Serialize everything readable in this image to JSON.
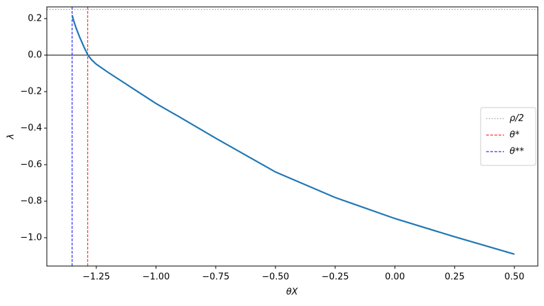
{
  "chart_data": {
    "type": "line",
    "xlabel": "θX",
    "ylabel": "λ",
    "x": [
      -1.351,
      -1.345,
      -1.335,
      -1.32,
      -1.3,
      -1.285,
      -1.27,
      -1.25,
      -1.2,
      -1.1,
      -1.0,
      -0.9,
      -0.75,
      -0.5,
      -0.25,
      0.0,
      0.25,
      0.5
    ],
    "series": [
      {
        "color": "#1f77b4",
        "values": [
          0.219,
          0.19,
          0.15,
          0.1,
          0.04,
          0.0,
          -0.025,
          -0.05,
          -0.095,
          -0.18,
          -0.265,
          -0.34,
          -0.455,
          -0.64,
          -0.78,
          -0.895,
          -0.995,
          -1.09
        ]
      }
    ],
    "reference_lines": [
      {
        "orientation": "h",
        "value": 0,
        "color": "#000000",
        "dash": "solid"
      },
      {
        "name": "ρ/2",
        "orientation": "h",
        "value": 0.25,
        "color": "#808080",
        "dash": "dotted"
      },
      {
        "name": "θ*",
        "orientation": "v",
        "value": -1.286,
        "color": "#ff0000",
        "dash": "dashed"
      },
      {
        "name": "θ**",
        "orientation": "v",
        "value": -1.351,
        "color": "#0000ff",
        "dash": "dashed"
      }
    ],
    "xlim": [
      -1.457,
      0.598
    ],
    "ylim": [
      -1.155,
      0.264
    ],
    "xticks": [
      {
        "value": -1.25,
        "label": "−1.25"
      },
      {
        "value": -1.0,
        "label": "−1.00"
      },
      {
        "value": -0.75,
        "label": "−0.75"
      },
      {
        "value": -0.5,
        "label": "−0.50"
      },
      {
        "value": -0.25,
        "label": "−0.25"
      },
      {
        "value": 0,
        "label": "0.00"
      },
      0.25,
      {
        "value": 0.5,
        "label": "0.50"
      }
    ],
    "yticks": [
      {
        "value": -1.0,
        "label": "−1.0"
      },
      {
        "value": -0.8,
        "label": "−0.8"
      },
      {
        "value": -0.6,
        "label": "−0.6"
      },
      {
        "value": -0.4,
        "label": "−0.4"
      },
      {
        "value": -0.2,
        "label": "−0.2"
      },
      {
        "value": 0,
        "label": "0.0"
      },
      0.2
    ],
    "legend": "center right"
  }
}
